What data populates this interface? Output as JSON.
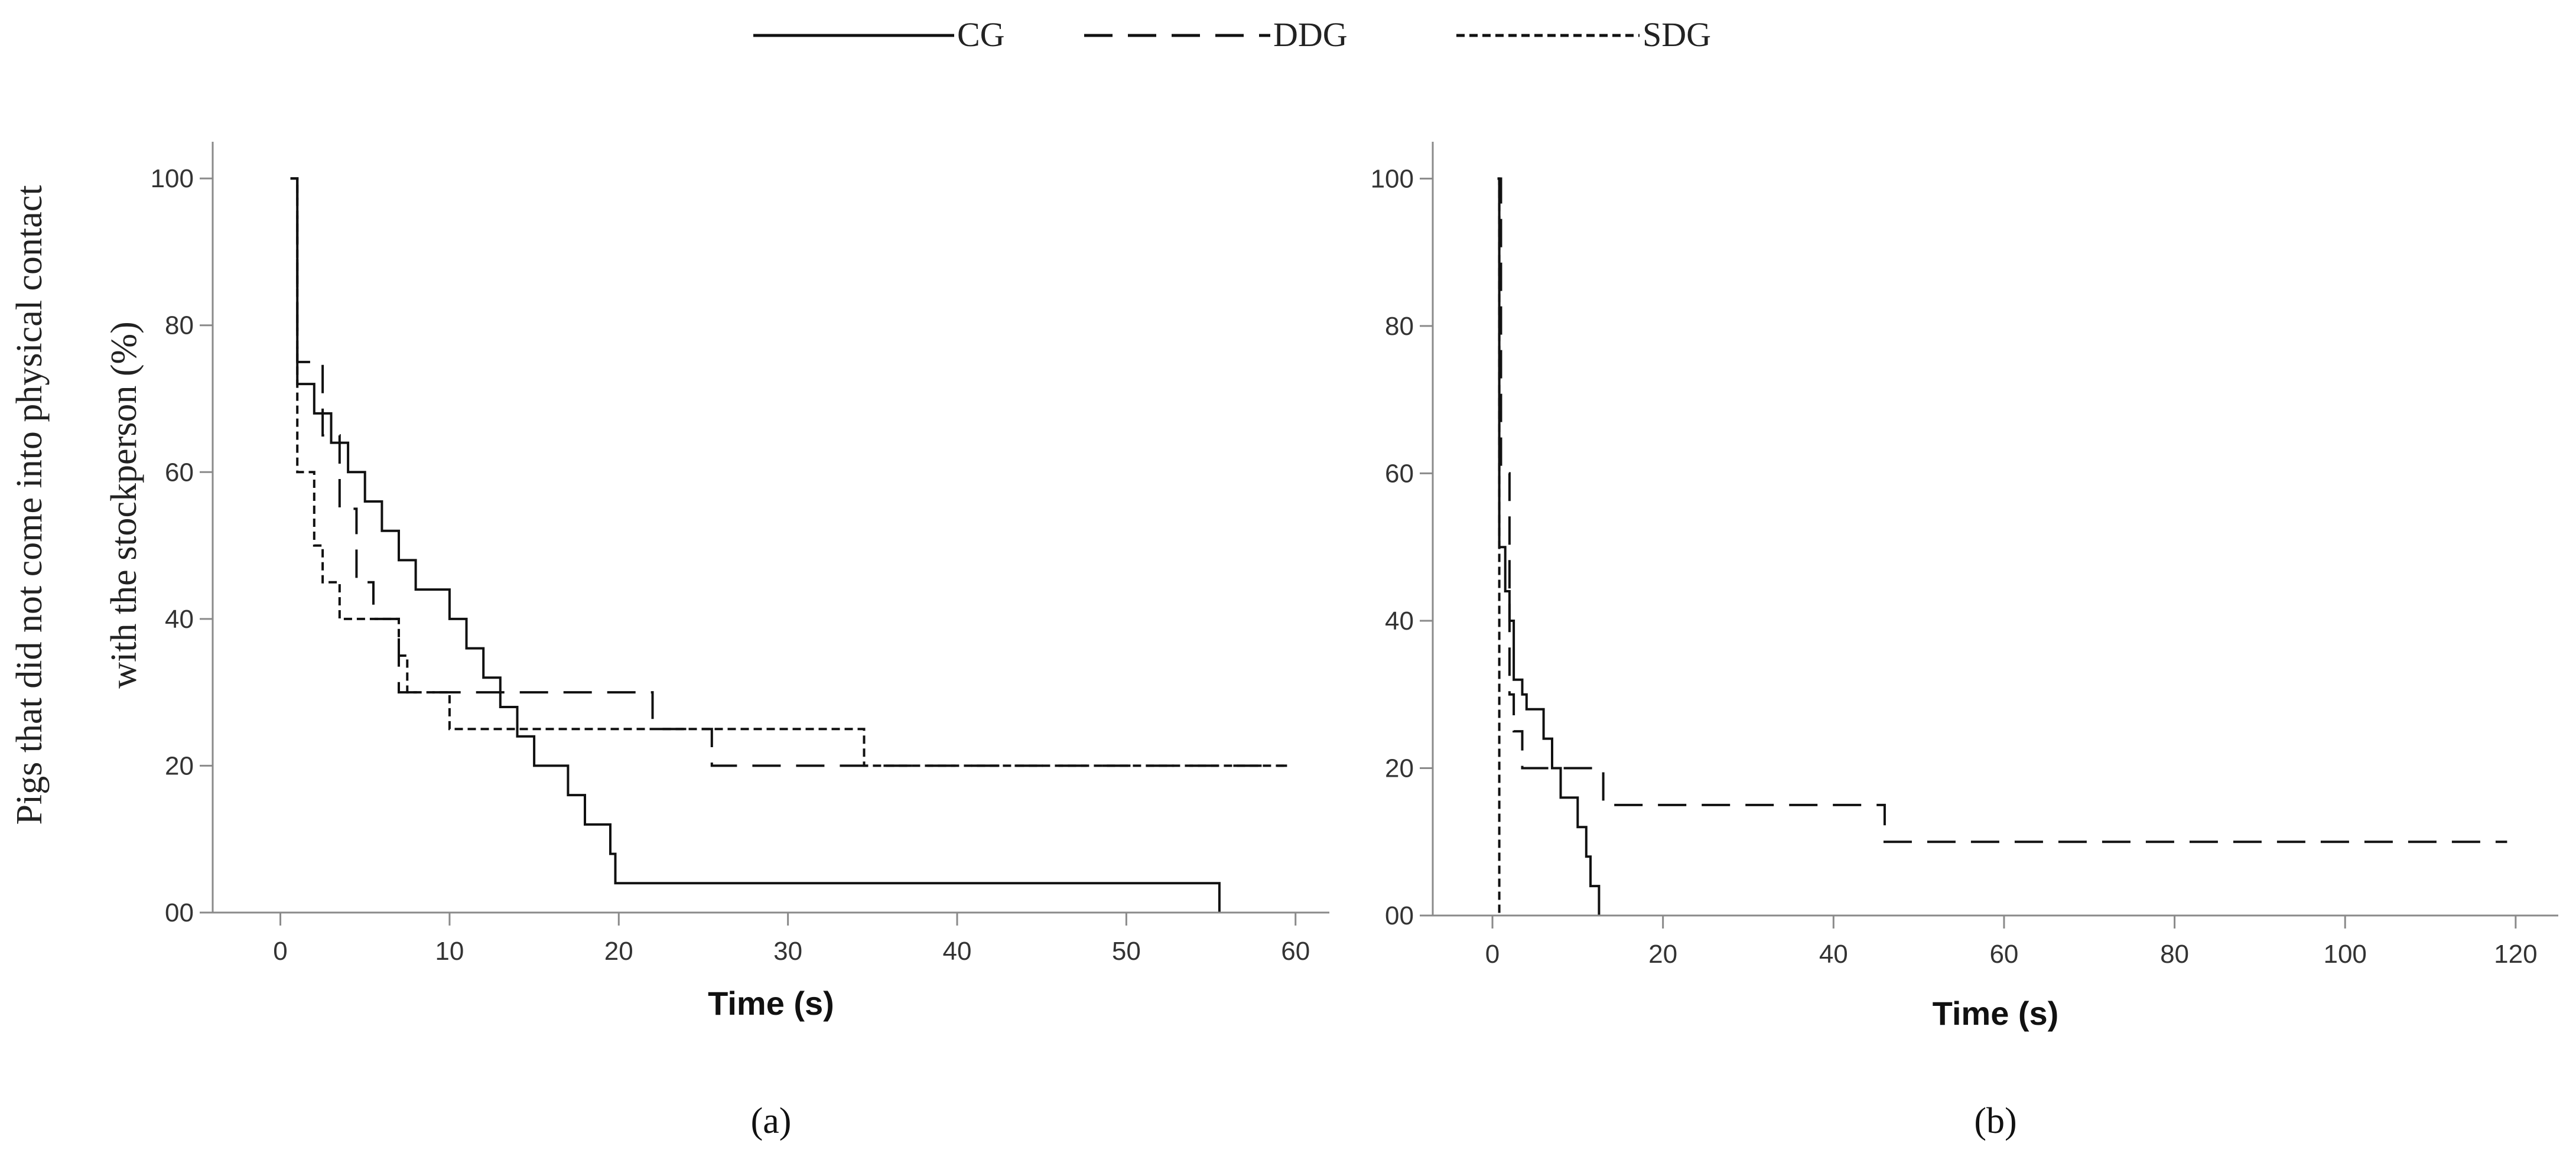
{
  "legend": [
    {
      "name": "CG",
      "dash": "solid"
    },
    {
      "name": "DDG",
      "dash": "long-dash"
    },
    {
      "name": "SDG",
      "dash": "short-dash"
    }
  ],
  "ylabel_lines": [
    "Pigs that did not come into physical contact",
    "with the stockperson (%)"
  ],
  "chart_data": [
    {
      "type": "line",
      "step": true,
      "panel_label": "(a)",
      "xlabel": "Time (s)",
      "xlim": [
        -4,
        62
      ],
      "ylim": [
        0,
        105
      ],
      "xticks": [
        0,
        10,
        20,
        30,
        40,
        50,
        60
      ],
      "yticks": [
        0,
        20,
        40,
        60,
        80,
        100
      ],
      "ytick_labels": [
        "00",
        "20",
        "40",
        "60",
        "80",
        "100"
      ],
      "grid": false,
      "series": [
        {
          "name": "CG",
          "dash": "solid",
          "x": [
            0.6,
            1,
            1,
            2,
            2,
            3,
            3,
            4,
            4,
            5,
            5,
            6,
            6,
            7,
            7,
            8,
            8,
            10,
            10,
            11,
            11,
            12,
            12,
            13,
            13,
            14,
            14,
            15,
            15,
            17,
            17,
            18,
            18,
            19.5,
            19.5,
            19.8,
            19.8,
            21,
            21,
            55.5,
            55.5
          ],
          "y": [
            100,
            100,
            72,
            72,
            68,
            68,
            64,
            64,
            60,
            60,
            56,
            56,
            52,
            52,
            48,
            48,
            44,
            44,
            40,
            40,
            36,
            36,
            32,
            32,
            28,
            28,
            24,
            24,
            20,
            20,
            16,
            16,
            12,
            12,
            8,
            8,
            4,
            4,
            4,
            4,
            0
          ]
        },
        {
          "name": "DDG",
          "dash": "long-dash",
          "x": [
            0.6,
            1,
            1,
            2.5,
            2.5,
            3.5,
            3.5,
            4.5,
            4.5,
            5.5,
            5.5,
            7,
            7,
            22,
            22,
            25.5,
            25.5,
            59.5
          ],
          "y": [
            100,
            100,
            75,
            75,
            65,
            65,
            55,
            55,
            45,
            45,
            40,
            40,
            30,
            30,
            25,
            25,
            20,
            20
          ]
        },
        {
          "name": "SDG",
          "dash": "short-dash",
          "x": [
            0.6,
            1,
            1,
            2,
            2,
            2.5,
            2.5,
            3.5,
            3.5,
            7,
            7,
            7.5,
            7.5,
            10,
            10,
            34.5,
            34.5,
            59.5
          ],
          "y": [
            100,
            100,
            60,
            60,
            50,
            50,
            45,
            45,
            40,
            40,
            35,
            35,
            30,
            30,
            25,
            25,
            20,
            20
          ]
        }
      ]
    },
    {
      "type": "line",
      "step": true,
      "panel_label": "(b)",
      "xlabel": "Time (s)",
      "xlim": [
        -7,
        125
      ],
      "ylim": [
        0,
        105
      ],
      "xticks": [
        0,
        20,
        40,
        60,
        80,
        100,
        120
      ],
      "yticks": [
        0,
        20,
        40,
        60,
        80,
        100
      ],
      "ytick_labels": [
        "00",
        "20",
        "40",
        "60",
        "80",
        "100"
      ],
      "grid": false,
      "series": [
        {
          "name": "CG",
          "dash": "solid",
          "x": [
            0.6,
            0.8,
            0.8,
            1.5,
            1.5,
            2,
            2,
            2.5,
            2.5,
            3.5,
            3.5,
            4,
            4,
            6,
            6,
            7,
            7,
            8,
            8,
            10,
            10,
            11,
            11,
            11.5,
            11.5,
            12.5,
            12.5
          ],
          "y": [
            100,
            100,
            50,
            50,
            44,
            44,
            40,
            40,
            32,
            32,
            30,
            30,
            28,
            28,
            24,
            24,
            20,
            20,
            16,
            16,
            12,
            12,
            8,
            8,
            4,
            4,
            0
          ]
        },
        {
          "name": "DDG",
          "dash": "long-dash",
          "x": [
            0.6,
            1,
            1,
            2,
            2,
            2.5,
            2.5,
            3.5,
            3.5,
            13,
            13,
            46,
            46,
            119
          ],
          "y": [
            100,
            100,
            60,
            60,
            30,
            30,
            25,
            25,
            20,
            20,
            15,
            15,
            10,
            10
          ]
        },
        {
          "name": "SDG",
          "dash": "short-dash",
          "x": [
            0.6,
            0.8,
            0.8
          ],
          "y": [
            100,
            100,
            0
          ]
        }
      ]
    }
  ]
}
